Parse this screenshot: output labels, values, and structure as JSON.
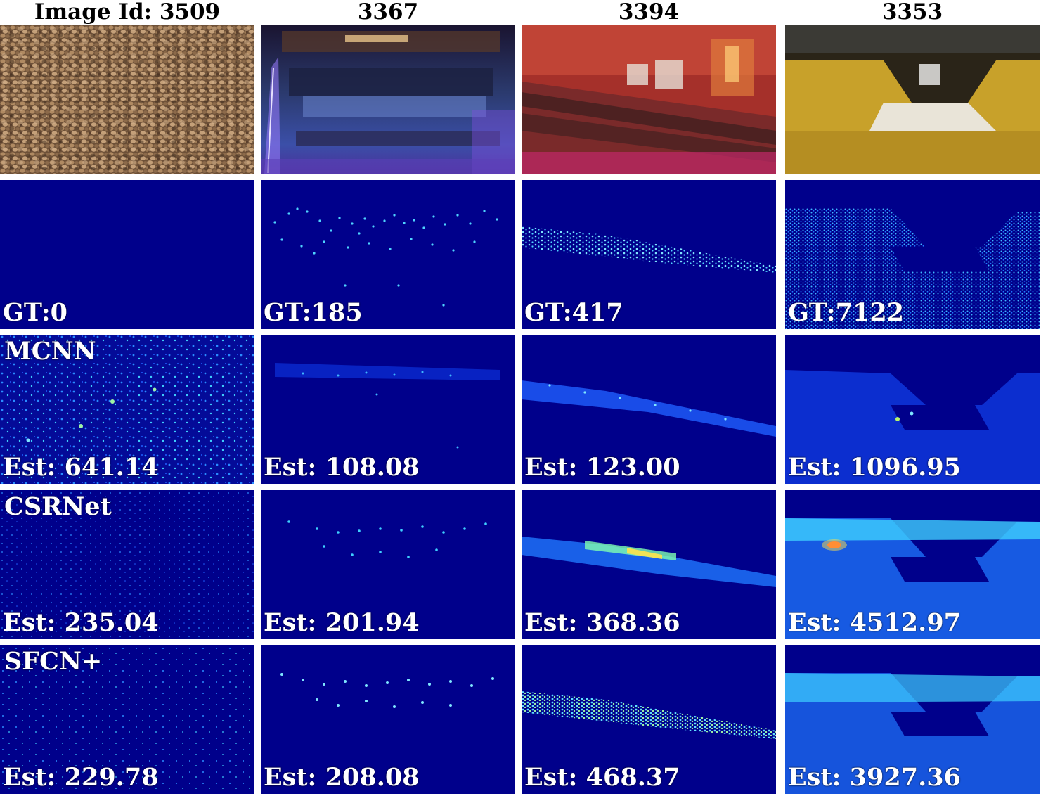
{
  "columns": [
    {
      "header": "Image Id: 3509",
      "gt": "GT:0",
      "rows": [
        {
          "method": "MCNN",
          "est": "Est: 641.14"
        },
        {
          "method": "CSRNet",
          "est": "Est: 235.04"
        },
        {
          "method": "SFCN+",
          "est": "Est: 229.78"
        }
      ]
    },
    {
      "header": "3367",
      "gt": "GT:185",
      "rows": [
        {
          "method": "",
          "est": "Est: 108.08"
        },
        {
          "method": "",
          "est": "Est: 201.94"
        },
        {
          "method": "",
          "est": "Est: 208.08"
        }
      ]
    },
    {
      "header": "3394",
      "gt": "GT:417",
      "rows": [
        {
          "method": "",
          "est": "Est: 123.00"
        },
        {
          "method": "",
          "est": "Est: 368.36"
        },
        {
          "method": "",
          "est": "Est: 468.37"
        }
      ]
    },
    {
      "header": "3353",
      "gt": "GT:7122",
      "rows": [
        {
          "method": "",
          "est": "Est: 1096.95"
        },
        {
          "method": "",
          "est": "Est: 4512.97"
        },
        {
          "method": "",
          "est": "Est: 3927.36"
        }
      ]
    }
  ],
  "colors": {
    "density_background": "#00008b",
    "density_point": "#4fd3ff",
    "density_hot": "#ffe24a"
  }
}
